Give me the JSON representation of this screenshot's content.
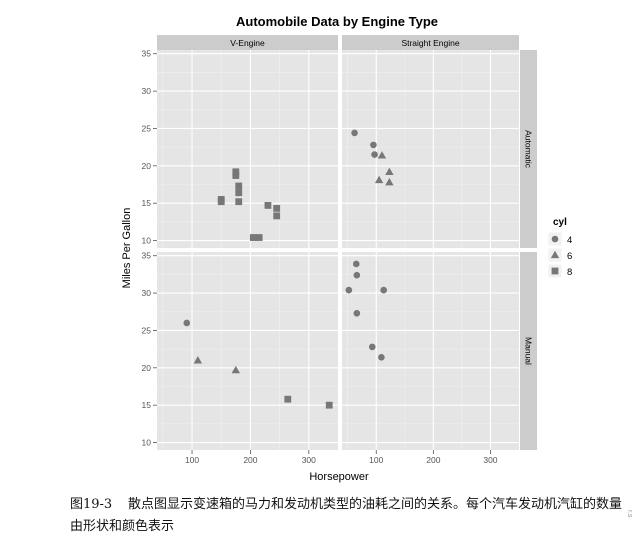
{
  "chart_data": {
    "type": "scatter",
    "title": "Automobile Data by Engine Type",
    "xlabel": "Horsepower",
    "ylabel": "Miles Per Gallon",
    "xlim": [
      40,
      350
    ],
    "ylim": [
      9,
      35.5
    ],
    "x_ticks": [
      100,
      200,
      300
    ],
    "y_ticks": [
      10,
      15,
      20,
      25,
      30,
      35
    ],
    "facet_cols": [
      "V-Engine",
      "Straight Engine"
    ],
    "facet_rows": [
      "Automatic",
      "Manual"
    ],
    "legend": {
      "title": "cyl",
      "position": "right",
      "entries": [
        {
          "label": "4",
          "shape": "circle"
        },
        {
          "label": "6",
          "shape": "triangle"
        },
        {
          "label": "8",
          "shape": "square"
        }
      ]
    },
    "point_color": "#777777",
    "panel_bg": "#e5e5e5",
    "strip_bg": "#cccccc",
    "grid": true,
    "panels": [
      {
        "col": "V-Engine",
        "row": "Automatic",
        "points": [
          {
            "x": 150,
            "y": 15.5,
            "cyl": "8"
          },
          {
            "x": 150,
            "y": 15.2,
            "cyl": "8"
          },
          {
            "x": 175,
            "y": 19.2,
            "cyl": "8"
          },
          {
            "x": 175,
            "y": 18.7,
            "cyl": "8"
          },
          {
            "x": 180,
            "y": 17.3,
            "cyl": "8"
          },
          {
            "x": 180,
            "y": 16.4,
            "cyl": "8"
          },
          {
            "x": 180,
            "y": 15.2,
            "cyl": "8"
          },
          {
            "x": 205,
            "y": 10.4,
            "cyl": "8"
          },
          {
            "x": 215,
            "y": 10.4,
            "cyl": "8"
          },
          {
            "x": 230,
            "y": 14.7,
            "cyl": "8"
          },
          {
            "x": 245,
            "y": 14.3,
            "cyl": "8"
          },
          {
            "x": 245,
            "y": 13.3,
            "cyl": "8"
          }
        ]
      },
      {
        "col": "Straight Engine",
        "row": "Automatic",
        "points": [
          {
            "x": 62,
            "y": 24.4,
            "cyl": "4"
          },
          {
            "x": 95,
            "y": 22.8,
            "cyl": "4"
          },
          {
            "x": 97,
            "y": 21.5,
            "cyl": "4"
          },
          {
            "x": 105,
            "y": 18.1,
            "cyl": "6"
          },
          {
            "x": 110,
            "y": 21.4,
            "cyl": "6"
          },
          {
            "x": 123,
            "y": 19.2,
            "cyl": "6"
          },
          {
            "x": 123,
            "y": 17.8,
            "cyl": "6"
          }
        ]
      },
      {
        "col": "V-Engine",
        "row": "Manual",
        "points": [
          {
            "x": 91,
            "y": 26.0,
            "cyl": "4"
          },
          {
            "x": 110,
            "y": 21.0,
            "cyl": "6"
          },
          {
            "x": 175,
            "y": 19.7,
            "cyl": "6"
          },
          {
            "x": 264,
            "y": 15.8,
            "cyl": "8"
          },
          {
            "x": 335,
            "y": 15.0,
            "cyl": "8"
          }
        ]
      },
      {
        "col": "Straight Engine",
        "row": "Manual",
        "points": [
          {
            "x": 52,
            "y": 30.4,
            "cyl": "4"
          },
          {
            "x": 65,
            "y": 33.9,
            "cyl": "4"
          },
          {
            "x": 66,
            "y": 32.4,
            "cyl": "4"
          },
          {
            "x": 66,
            "y": 27.3,
            "cyl": "4"
          },
          {
            "x": 93,
            "y": 22.8,
            "cyl": "4"
          },
          {
            "x": 109,
            "y": 21.4,
            "cyl": "4"
          },
          {
            "x": 113,
            "y": 30.4,
            "cyl": "4"
          }
        ]
      }
    ]
  },
  "caption": {
    "figure_id": "图19-3",
    "text": "散点图显示变速箱的马力和发动机类型的油耗之间的关系。每个汽车发动机汽缸的数量由形状和颜色表示"
  },
  "side_mark": "r.s"
}
